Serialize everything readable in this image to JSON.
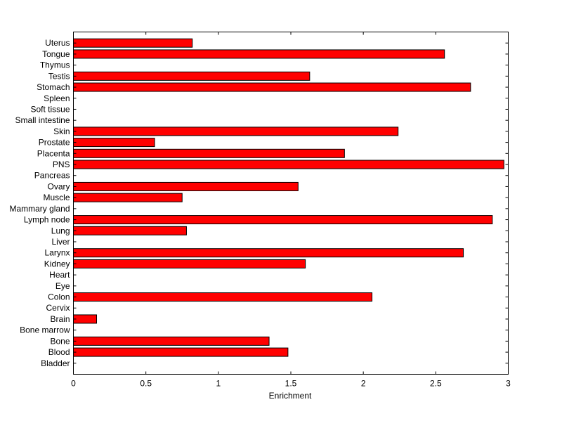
{
  "chart_data": {
    "type": "bar",
    "orientation": "horizontal",
    "xlabel": "Enrichment",
    "ylabel": "",
    "title": "",
    "xlim": [
      0,
      3
    ],
    "xticks": [
      "0",
      "0.5",
      "1",
      "1.5",
      "2",
      "2.5",
      "3"
    ],
    "grid": false,
    "bar_color": "#ff0000",
    "categories": [
      "Bladder",
      "Blood",
      "Bone",
      "Bone marrow",
      "Brain",
      "Cervix",
      "Colon",
      "Eye",
      "Heart",
      "Kidney",
      "Larynx",
      "Liver",
      "Lung",
      "Lymph node",
      "Mammary gland",
      "Muscle",
      "Ovary",
      "Pancreas",
      "PNS",
      "Placenta",
      "Prostate",
      "Skin",
      "Small intestine",
      "Soft tissue",
      "Spleen",
      "Stomach",
      "Testis",
      "Thymus",
      "Tongue",
      "Uterus"
    ],
    "values": [
      0,
      1.48,
      1.35,
      0,
      0.16,
      0,
      2.06,
      0,
      0,
      1.6,
      2.69,
      0,
      0.78,
      2.89,
      0,
      0.75,
      1.55,
      0,
      2.97,
      1.87,
      0.56,
      2.24,
      0,
      0,
      0,
      2.74,
      1.63,
      0,
      2.56,
      0.82
    ]
  }
}
